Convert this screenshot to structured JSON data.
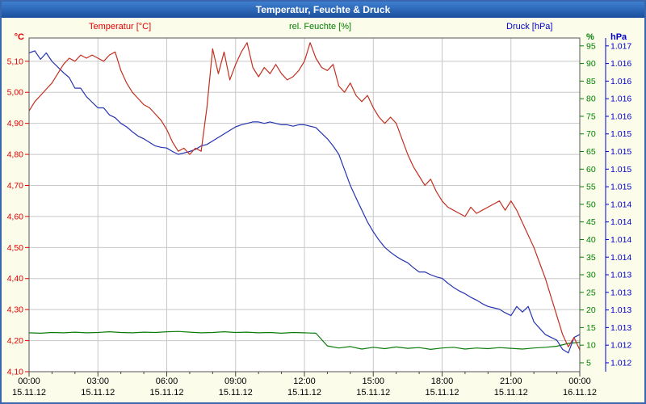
{
  "window": {
    "title": "Temperatur, Feuchte & Druck"
  },
  "legend": {
    "temperature": "Temperatur [°C]",
    "humidity": "rel. Feuchte [%]",
    "pressure": "Druck [hPa]"
  },
  "colors": {
    "titlebar": "#2a63ad",
    "background": "#fcfceb",
    "plot_bg": "#ffffff",
    "grid": "#c8c8c8",
    "plot_border": "#555555",
    "temperature_text": "#e60000",
    "humidity_text": "#008000",
    "pressure_text": "#0000cc",
    "time_text": "#000000"
  },
  "axes": {
    "left": {
      "unit": "°C",
      "tick_labels": [
        "5,10",
        "5,00",
        "4,90",
        "4,80",
        "4,70",
        "4,60",
        "4,50",
        "4,40",
        "4,30",
        "4,20",
        "4,10"
      ],
      "tick_values": [
        5.1,
        5.0,
        4.9,
        4.8,
        4.7,
        4.6,
        4.5,
        4.4,
        4.3,
        4.2,
        4.1
      ],
      "range": [
        4.1,
        5.175
      ]
    },
    "right_percent": {
      "unit": "%",
      "tick_labels": [
        "95",
        "90",
        "85",
        "80",
        "75",
        "70",
        "65",
        "60",
        "55",
        "50",
        "45",
        "40",
        "35",
        "30",
        "25",
        "20",
        "15",
        "10",
        "5"
      ],
      "tick_values": [
        95,
        90,
        85,
        80,
        75,
        70,
        65,
        60,
        55,
        50,
        45,
        40,
        35,
        30,
        25,
        20,
        15,
        10,
        5
      ],
      "range": [
        2.47,
        97.25
      ]
    },
    "right_hpa": {
      "unit": "hPa",
      "tick_labels": [
        "1.017",
        "1.016",
        "1.016",
        "1.016",
        "1.016",
        "1.015",
        "1.015",
        "1.015",
        "1.015",
        "1.014",
        "1.014",
        "1.014",
        "1.014",
        "1.013",
        "1.013",
        "1.013",
        "1.013",
        "1.012",
        "1.012"
      ],
      "tick_values": [
        1.017,
        1.01675,
        1.0165,
        1.01625,
        1.016,
        1.01575,
        1.0155,
        1.01525,
        1.015,
        1.01475,
        1.0145,
        1.01425,
        1.014,
        1.01375,
        1.0135,
        1.01325,
        1.013,
        1.01275,
        1.0125
      ],
      "range": [
        1.0123735,
        1.0171125
      ]
    },
    "x": {
      "tick_times": [
        "00:00",
        "03:00",
        "06:00",
        "09:00",
        "12:00",
        "15:00",
        "18:00",
        "21:00",
        "00:00"
      ],
      "tick_dates": [
        "15.11.12",
        "15.11.12",
        "15.11.12",
        "15.11.12",
        "15.11.12",
        "15.11.12",
        "15.11.12",
        "15.11.12",
        "16.11.12"
      ],
      "tick_hours": [
        0,
        3,
        6,
        9,
        12,
        15,
        18,
        21,
        24
      ],
      "range": [
        0,
        24
      ]
    }
  },
  "chart_data": {
    "type": "line",
    "title": "Temperatur, Feuchte & Druck",
    "x_axis": {
      "kind": "time",
      "start": "15.11.12 00:00",
      "end": "16.11.12 00:00",
      "hours_range": [
        0,
        24
      ]
    },
    "grid": true,
    "legend_position": "top",
    "series": [
      {
        "id": "temperature",
        "name": "Temperatur [°C]",
        "axis": "left",
        "color": "#c22f20",
        "x_start": 0,
        "x_step": 0.25,
        "values": [
          4.94,
          4.97,
          4.99,
          5.01,
          5.03,
          5.06,
          5.09,
          5.11,
          5.1,
          5.12,
          5.11,
          5.12,
          5.11,
          5.1,
          5.12,
          5.13,
          5.07,
          5.03,
          5.0,
          4.98,
          4.96,
          4.95,
          4.93,
          4.91,
          4.88,
          4.84,
          4.81,
          4.82,
          4.8,
          4.82,
          4.81,
          4.95,
          5.14,
          5.06,
          5.13,
          5.04,
          5.09,
          5.13,
          5.16,
          5.08,
          5.05,
          5.08,
          5.06,
          5.09,
          5.06,
          5.04,
          5.05,
          5.07,
          5.1,
          5.16,
          5.11,
          5.08,
          5.07,
          5.09,
          5.02,
          5.0,
          5.03,
          4.99,
          4.97,
          4.99,
          4.95,
          4.92,
          4.9,
          4.92,
          4.9,
          4.85,
          4.8,
          4.76,
          4.73,
          4.7,
          4.72,
          4.68,
          4.65,
          4.63,
          4.62,
          4.61,
          4.6,
          4.63,
          4.61,
          4.62,
          4.63,
          4.64,
          4.65,
          4.62,
          4.65,
          4.62,
          4.58,
          4.54,
          4.5,
          4.45,
          4.4,
          4.34,
          4.28,
          4.22,
          4.18,
          4.21,
          4.17
        ]
      },
      {
        "id": "humidity",
        "name": "rel. Feuchte [%]",
        "axis": "right_percent",
        "color": "#0b7c0b",
        "x_start": 0,
        "x_step": 0.5,
        "values": [
          13.5,
          13.4,
          13.6,
          13.5,
          13.7,
          13.5,
          13.6,
          13.8,
          13.6,
          13.5,
          13.7,
          13.6,
          13.8,
          13.9,
          13.7,
          13.5,
          13.6,
          13.8,
          13.6,
          13.7,
          13.5,
          13.6,
          13.4,
          13.6,
          13.5,
          13.4,
          9.8,
          9.2,
          9.6,
          8.9,
          9.4,
          9.0,
          9.5,
          9.1,
          9.3,
          8.8,
          9.2,
          9.4,
          8.9,
          9.2,
          9.0,
          9.3,
          9.1,
          8.9,
          9.2,
          9.4,
          9.7,
          10.5,
          10.8
        ]
      },
      {
        "id": "pressure",
        "name": "Druck [hPa]",
        "axis": "right_hpa",
        "color": "#2433b0",
        "x_start": 0,
        "x_step": 0.25,
        "values": [
          1.0169,
          1.01693,
          1.01681,
          1.0169,
          1.01678,
          1.0167,
          1.01662,
          1.01655,
          1.0164,
          1.0164,
          1.01628,
          1.0162,
          1.01612,
          1.01612,
          1.01602,
          1.01598,
          1.0159,
          1.01585,
          1.01578,
          1.01572,
          1.01568,
          1.01563,
          1.01558,
          1.01556,
          1.01555,
          1.0155,
          1.01546,
          1.01548,
          1.0155,
          1.01553,
          1.01558,
          1.0156,
          1.01565,
          1.0157,
          1.01575,
          1.0158,
          1.01585,
          1.01588,
          1.0159,
          1.01592,
          1.01592,
          1.0159,
          1.01592,
          1.0159,
          1.01588,
          1.01588,
          1.01586,
          1.01588,
          1.01588,
          1.01586,
          1.01584,
          1.01576,
          1.01568,
          1.01558,
          1.01546,
          1.01524,
          1.01502,
          1.01484,
          1.01467,
          1.0145,
          1.01436,
          1.01424,
          1.01414,
          1.01407,
          1.01401,
          1.01396,
          1.01392,
          1.01385,
          1.01379,
          1.01379,
          1.01375,
          1.01372,
          1.0137,
          1.01363,
          1.01357,
          1.01352,
          1.01348,
          1.01343,
          1.01339,
          1.01334,
          1.0133,
          1.01328,
          1.01326,
          1.01321,
          1.01317,
          1.0133,
          1.01322,
          1.0133,
          1.01308,
          1.01299,
          1.0129,
          1.01286,
          1.01282,
          1.01269,
          1.01264,
          1.01286,
          1.0129
        ]
      }
    ]
  }
}
